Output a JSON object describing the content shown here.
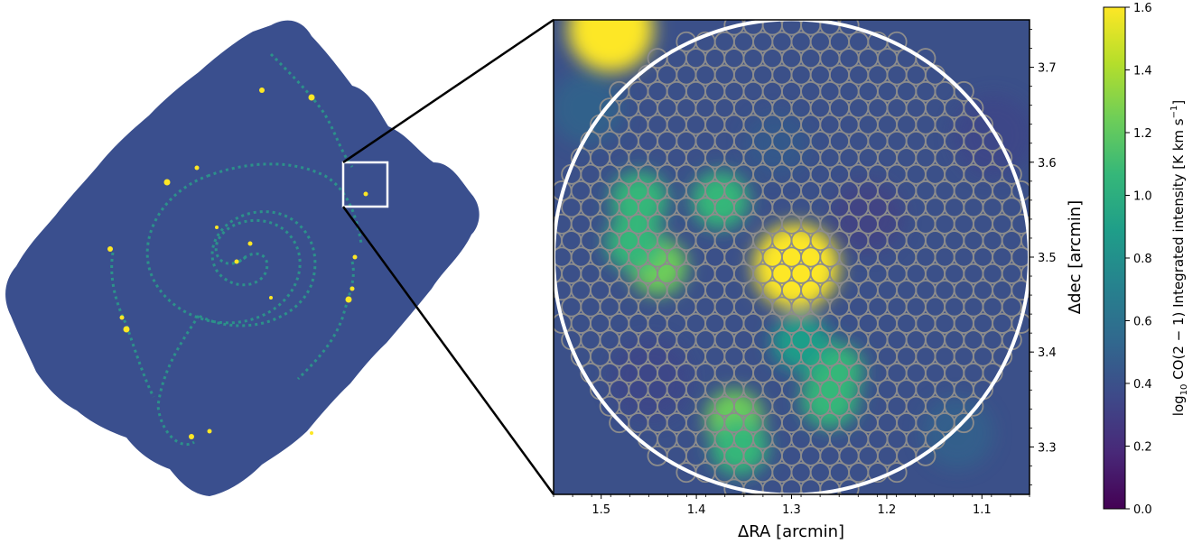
{
  "chart_data": {
    "type": "heatmap",
    "xlabel": "ΔRA [arcmin]",
    "ylabel": "Δdec [arcmin]",
    "xlim": [
      1.55,
      1.05
    ],
    "ylim": [
      3.25,
      3.75
    ],
    "xticks": [
      1.5,
      1.4,
      1.3,
      1.2,
      1.1
    ],
    "xtick_labels": [
      "1.5",
      "1.4",
      "1.3",
      "1.2",
      "1.1"
    ],
    "yticks": [
      3.3,
      3.4,
      3.5,
      3.6,
      3.7
    ],
    "ytick_labels": [
      "3.3",
      "3.4",
      "3.5",
      "3.6",
      "3.7"
    ],
    "colorbar": {
      "label_prefix": "log",
      "label_sub": "10",
      "label_main": " CO(2 − 1) Integrated intensity [K km s",
      "label_sup": "−1",
      "label_end": "]",
      "range": [
        0.0,
        1.6
      ],
      "ticks": [
        0.0,
        0.2,
        0.4,
        0.6,
        0.8,
        1.0,
        1.2,
        1.4,
        1.6
      ],
      "tick_labels": [
        "0.0",
        "0.2",
        "0.4",
        "0.6",
        "0.8",
        "1.0",
        "1.2",
        "1.4",
        "1.6"
      ],
      "colormap": [
        "#440154",
        "#482878",
        "#3e4989",
        "#31688e",
        "#26828e",
        "#1f9e89",
        "#35b779",
        "#6ece58",
        "#b5de2b",
        "#fde725"
      ]
    },
    "zoom_circle": {
      "center_ra": 1.3,
      "center_dec": 3.5,
      "radius": 0.25
    },
    "emission_peaks": [
      {
        "ra": 1.49,
        "dec": 3.74,
        "value": 1.6
      },
      {
        "ra": 1.295,
        "dec": 3.49,
        "value": 1.6
      },
      {
        "ra": 1.44,
        "dec": 3.49,
        "value": 1.25
      },
      {
        "ra": 1.465,
        "dec": 3.515,
        "value": 1.0
      },
      {
        "ra": 1.46,
        "dec": 3.56,
        "value": 1.0
      },
      {
        "ra": 1.375,
        "dec": 3.56,
        "value": 1.05
      },
      {
        "ra": 1.36,
        "dec": 3.33,
        "value": 1.3
      },
      {
        "ra": 1.355,
        "dec": 3.3,
        "value": 1.05
      },
      {
        "ra": 1.26,
        "dec": 3.35,
        "value": 1.1
      },
      {
        "ra": 1.255,
        "dec": 3.38,
        "value": 1.0
      },
      {
        "ra": 1.29,
        "dec": 3.41,
        "value": 0.8
      }
    ]
  },
  "galaxy_panel": {
    "colors": {
      "background": "#3a4f8e",
      "arm": "#2a9d8a",
      "knot": "#fde725"
    }
  },
  "colors": {
    "frame": "#000000",
    "circle_outline": "#ffffff",
    "hex_grid": "#8c8c8c",
    "zoom_box": "#ffffff"
  }
}
